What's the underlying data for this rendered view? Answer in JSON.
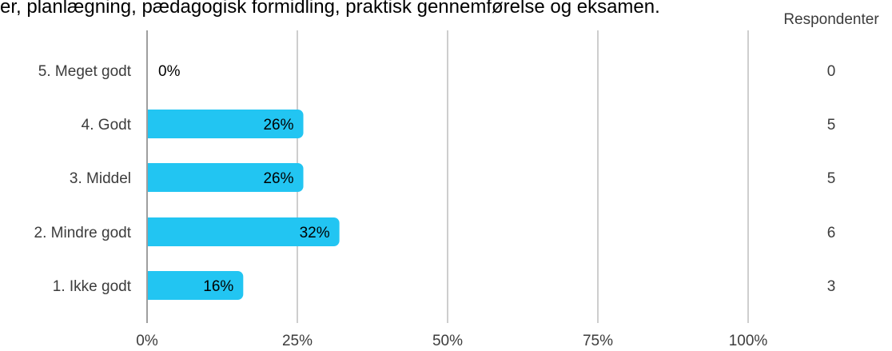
{
  "chart_data": {
    "type": "bar",
    "orientation": "horizontal",
    "title": "er, planlægning, pædagogisk formidling, praktisk gennemførelse og eksamen.",
    "categories": [
      "5. Meget godt",
      "4. Godt",
      "3. Middel",
      "2. Mindre godt",
      "1. Ikke godt"
    ],
    "values": [
      0,
      26,
      26,
      32,
      16
    ],
    "value_labels": [
      "0%",
      "26%",
      "26%",
      "32%",
      "16%"
    ],
    "respondents_header": "Respondenter",
    "respondents": [
      "0",
      "5",
      "5",
      "6",
      "3"
    ],
    "x_ticks": [
      "0%",
      "25%",
      "50%",
      "75%",
      "100%"
    ],
    "x_tick_values": [
      0,
      25,
      50,
      75,
      100
    ],
    "xlim": [
      0,
      100
    ],
    "grid": true,
    "bar_color": "#22c5f2",
    "grid_color": "#9e9e9e",
    "axis_color": "#9e9e9e"
  }
}
